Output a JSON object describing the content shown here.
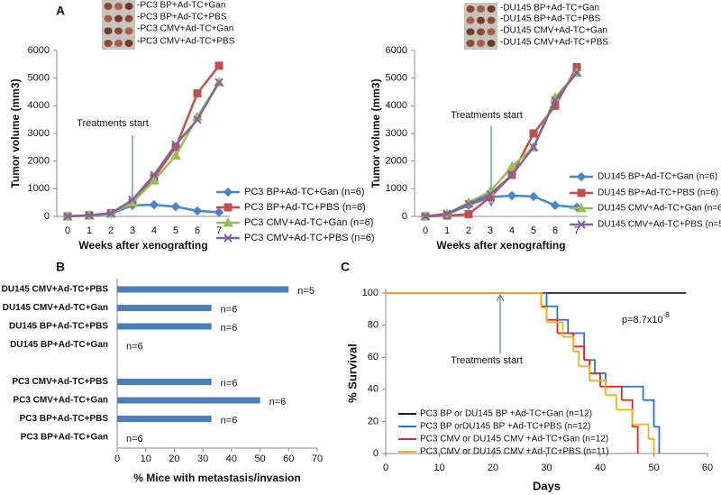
{
  "chart_data": [
    {
      "type": "line",
      "panel_label": "A",
      "image_labels": [
        "-PC3 BP+Ad-TC+Gan",
        "-PC3 BP+Ad-TC+PBS",
        "-PC3 CMV+Ad-TC+Gan",
        "-PC3 CMV+Ad-TC+PBS"
      ],
      "y_label": "Tumor volume (mm3)",
      "x_label": "Weeks after xenografting",
      "annotation": "Treatments start",
      "x": [
        0,
        1,
        2,
        3,
        4,
        5,
        6,
        7
      ],
      "xlim": [
        -0.5,
        7.5
      ],
      "xticks": [
        0,
        1,
        2,
        3,
        4,
        5,
        6,
        7
      ],
      "ylim": [
        0,
        6000
      ],
      "yticks": [
        0,
        1000,
        2000,
        3000,
        4000,
        5000,
        6000
      ],
      "series": [
        {
          "name": "PC3 BP+Ad-TC+Gan (n=6)",
          "color": "#4a86c8",
          "marker": "diamond",
          "values": [
            0,
            30,
            100,
            400,
            420,
            350,
            200,
            150
          ]
        },
        {
          "name": "PC3 BP+Ad-TC+PBS (n=6)",
          "color": "#c0504d",
          "marker": "square",
          "values": [
            0,
            40,
            120,
            500,
            1400,
            2500,
            4450,
            5450
          ]
        },
        {
          "name": "PC3 CMV+Ad-TC+Gan (n=6)",
          "color": "#9bbb59",
          "marker": "triangle",
          "values": [
            0,
            30,
            100,
            500,
            1300,
            2200,
            3600,
            4850
          ]
        },
        {
          "name": "PC3 CMV+Ad-TC+PBS (n=6)",
          "color": "#8064a2",
          "marker": "cross",
          "values": [
            0,
            40,
            110,
            600,
            1500,
            2600,
            3500,
            4850
          ]
        }
      ]
    },
    {
      "type": "line",
      "image_labels": [
        "-DU145 BP+Ad-TC+Gan",
        "-DU145 BP+Ad-TC+PBS",
        "-DU145 CMV+Ad-TC+Gan",
        "-DU145 CMV+Ad-TC+PBS"
      ],
      "y_label": "Tumor volume (mm3)",
      "x_label": "Weeks after xenografting",
      "annotation": "Treatments start",
      "x": [
        0,
        1,
        2,
        3,
        4,
        5,
        6,
        7
      ],
      "xlim": [
        -0.5,
        7.5
      ],
      "xticks": [
        0,
        1,
        2,
        3,
        4,
        5,
        6,
        7
      ],
      "ylim": [
        0,
        6000
      ],
      "yticks": [
        0,
        1000,
        2000,
        3000,
        4000,
        5000,
        6000
      ],
      "series": [
        {
          "name": "DU145 BP+Ad-TC+Gan (n=6)",
          "color": "#4a86c8",
          "marker": "diamond",
          "values": [
            0,
            80,
            400,
            700,
            750,
            720,
            400,
            330
          ]
        },
        {
          "name": "DU145 BP+Ad-TC+PBS (n=6)",
          "color": "#c0504d",
          "marker": "square",
          "values": [
            0,
            30,
            80,
            700,
            1500,
            3000,
            4000,
            5400
          ]
        },
        {
          "name": "DU145 CMV+Ad-TC+Gan (n=6)",
          "color": "#9bbb59",
          "marker": "triangle",
          "values": [
            0,
            100,
            500,
            900,
            1800,
            2500,
            4300,
            5200
          ]
        },
        {
          "name": "DU145 CMV+Ad-TC+PBS (n=5)",
          "color": "#8064a2",
          "marker": "cross",
          "values": [
            0,
            100,
            450,
            800,
            1500,
            2500,
            4200,
            5200
          ]
        }
      ]
    },
    {
      "type": "bar",
      "panel_label": "B",
      "orientation": "horizontal",
      "color": "#4a7ebb",
      "x_label": "% Mice with metastasis/invasion",
      "categories": [
        "DU145 CMV+Ad-TC+PBS",
        "DU145 CMV+Ad-TC+Gan",
        "DU145 BP+Ad-TC+PBS",
        "DU145 BP+Ad-TC+Gan",
        null,
        "PC3 CMV+Ad-TC+PBS",
        "PC3 CMV+Ad-TC+Gan",
        "PC3 BP+Ad-TC+PBS",
        "PC3 BP+Ad-TC+Gan"
      ],
      "values": [
        60,
        33,
        33,
        0,
        null,
        33,
        50,
        33,
        0
      ],
      "bar_labels": [
        "n=5",
        "n=6",
        "n=6",
        "n=6",
        null,
        "n=6",
        "n=6",
        "n=6",
        "n=6"
      ],
      "xlim": [
        0,
        70
      ],
      "xticks": [
        0,
        10,
        20,
        30,
        40,
        50,
        60,
        70
      ]
    },
    {
      "type": "step",
      "panel_label": "C",
      "y_label": "% Survival",
      "x_label": "Days",
      "annotation": "Treatments start",
      "p_value": "p=8.7x10",
      "p_value_exponent": "-8",
      "xlim": [
        0,
        60
      ],
      "xticks": [
        0,
        10,
        20,
        30,
        40,
        50,
        60
      ],
      "ylim": [
        0,
        100
      ],
      "yticks": [
        0,
        20,
        40,
        60,
        80,
        100
      ],
      "series": [
        {
          "name": "PC3 BP or DU145 BP +Ad-TC+Gan (n=12)",
          "color": "#222222",
          "x": [
            0,
            56
          ],
          "values": [
            100,
            100
          ]
        },
        {
          "name": "PC3 BP orDU145 BP +Ad-TC+PBS (n=12)",
          "color": "#2e6fd6",
          "x": [
            0,
            30,
            32,
            34,
            37,
            39,
            41,
            48,
            50,
            51
          ],
          "values": [
            100,
            91.7,
            83.3,
            75,
            58.3,
            50,
            41.7,
            33.3,
            16.7,
            0
          ]
        },
        {
          "name": "PC3 CMV or DU145 CMV +Ad-TC+Gan (n=12)",
          "color": "#e8231f",
          "x": [
            0,
            29,
            30,
            32,
            35,
            37,
            38,
            40,
            44,
            46,
            47
          ],
          "values": [
            100,
            91.7,
            83.3,
            75,
            66.7,
            58.3,
            50,
            41.7,
            33.3,
            16.7,
            0
          ]
        },
        {
          "name": "PC3 CMV or DU145 CMV +Ad-TC+PBS (n=11)",
          "color": "#f6b21a",
          "x": [
            0,
            29,
            30,
            33,
            35,
            36,
            38,
            41,
            43,
            46,
            49,
            50
          ],
          "values": [
            100,
            90.9,
            81.8,
            72.7,
            63.6,
            54.5,
            45.5,
            36.4,
            27.3,
            18.2,
            9.1,
            0
          ]
        }
      ]
    }
  ]
}
